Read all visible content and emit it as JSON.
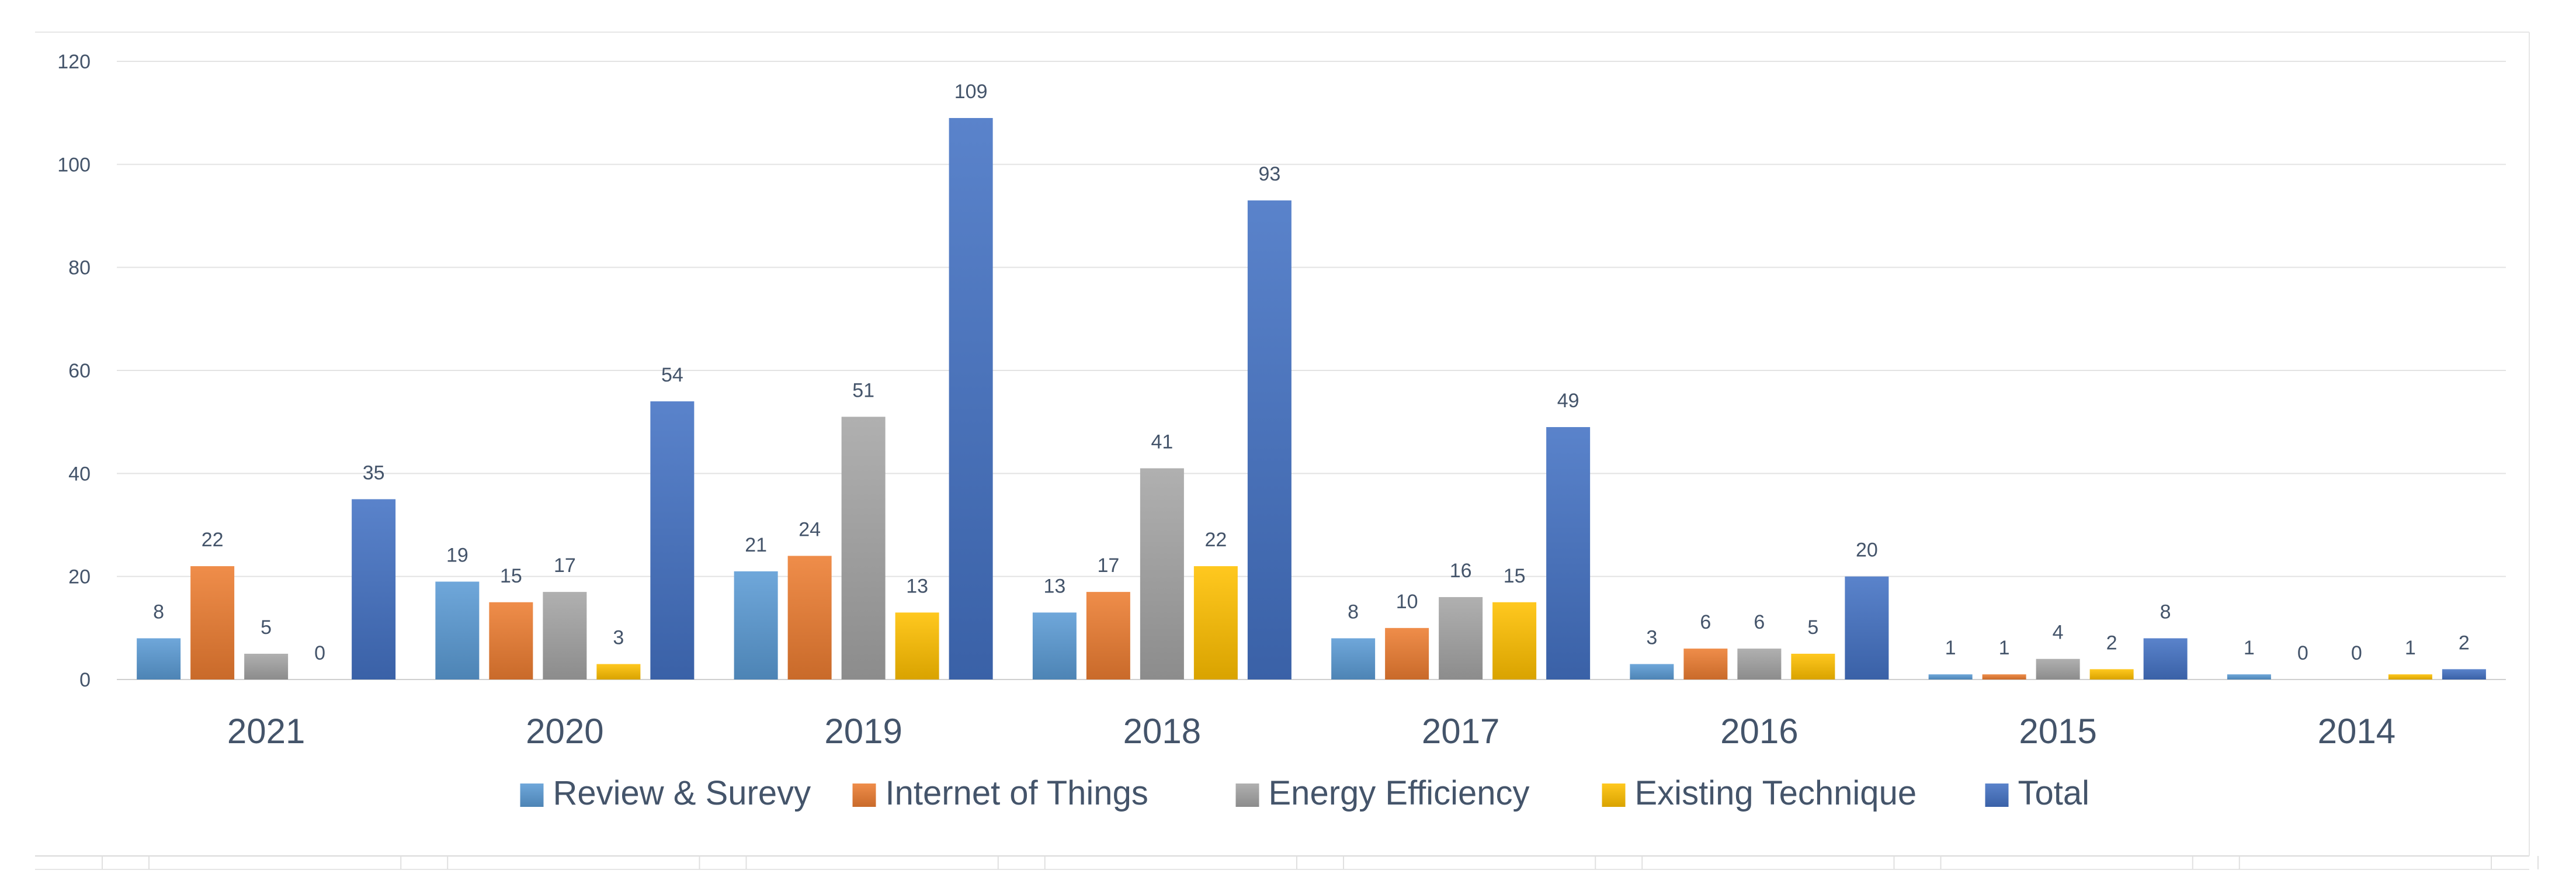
{
  "chart_data": {
    "type": "bar",
    "title": "",
    "xlabel": "",
    "ylabel": "",
    "ylim": [
      0,
      120
    ],
    "yticks": [
      0,
      20,
      40,
      60,
      80,
      100,
      120
    ],
    "grid": true,
    "legend_position": "bottom",
    "categories": [
      "2021",
      "2020",
      "2019",
      "2018",
      "2017",
      "2016",
      "2015",
      "2014"
    ],
    "series": [
      {
        "name": "Review & Surevy",
        "color": "#5b9bd5",
        "values": [
          8,
          19,
          21,
          13,
          8,
          3,
          1,
          1
        ]
      },
      {
        "name": "Internet of Things",
        "color": "#ed7d31",
        "values": [
          22,
          15,
          24,
          17,
          10,
          6,
          1,
          0
        ]
      },
      {
        "name": "Energy Efficiency",
        "color": "#a5a5a5",
        "values": [
          5,
          17,
          51,
          41,
          16,
          6,
          4,
          0
        ]
      },
      {
        "name": "Existing Technique",
        "color": "#ffc000",
        "values": [
          0,
          3,
          13,
          22,
          15,
          5,
          2,
          1
        ]
      },
      {
        "name": "Total",
        "color": "#4472c4",
        "values": [
          35,
          54,
          109,
          93,
          49,
          20,
          8,
          2
        ]
      }
    ]
  }
}
